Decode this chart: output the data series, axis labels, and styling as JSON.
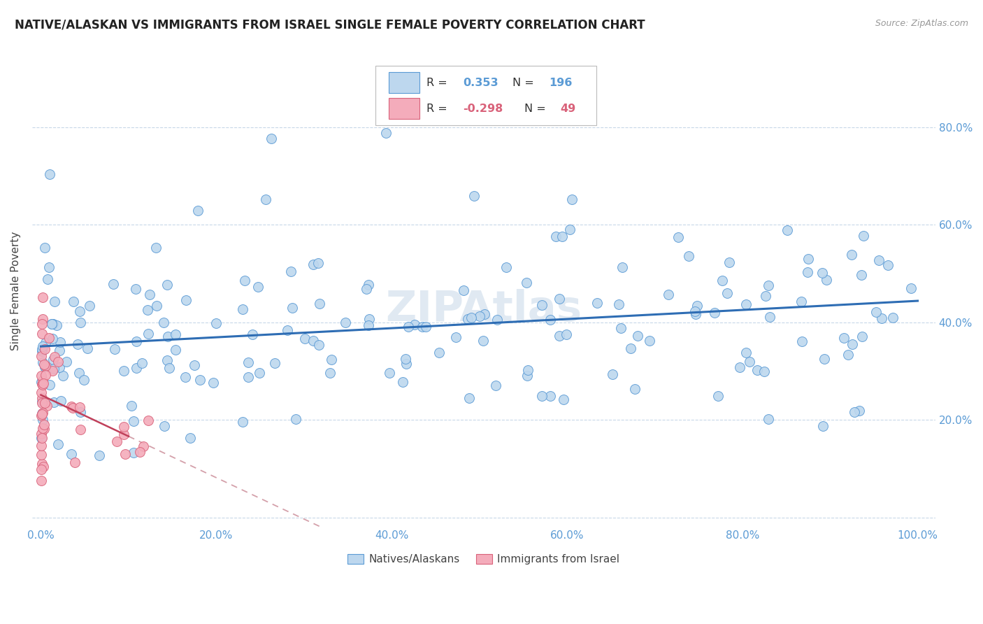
{
  "title": "NATIVE/ALASKAN VS IMMIGRANTS FROM ISRAEL SINGLE FEMALE POVERTY CORRELATION CHART",
  "source": "Source: ZipAtlas.com",
  "ylabel": "Single Female Poverty",
  "watermark": "ZIPAtlas",
  "blue_R": 0.353,
  "blue_N": 196,
  "pink_R": -0.298,
  "pink_N": 49,
  "xticklabels": [
    "0.0%",
    "20.0%",
    "40.0%",
    "60.0%",
    "80.0%",
    "100.0%"
  ],
  "yticklabels_right": [
    "20.0%",
    "40.0%",
    "60.0%",
    "80.0%"
  ],
  "legend_label_blue": "Natives/Alaskans",
  "legend_label_pink": "Immigrants from Israel",
  "blue_color": "#BDD7EE",
  "blue_edge": "#5B9BD5",
  "pink_color": "#F4ACBB",
  "pink_edge": "#D9627A",
  "blue_line_color": "#2E6DB4",
  "pink_line_color": "#C0405A",
  "pink_dashed_color": "#D4A0AA",
  "title_fontsize": 12,
  "axis_label_fontsize": 11,
  "tick_fontsize": 11,
  "marker_size": 100
}
